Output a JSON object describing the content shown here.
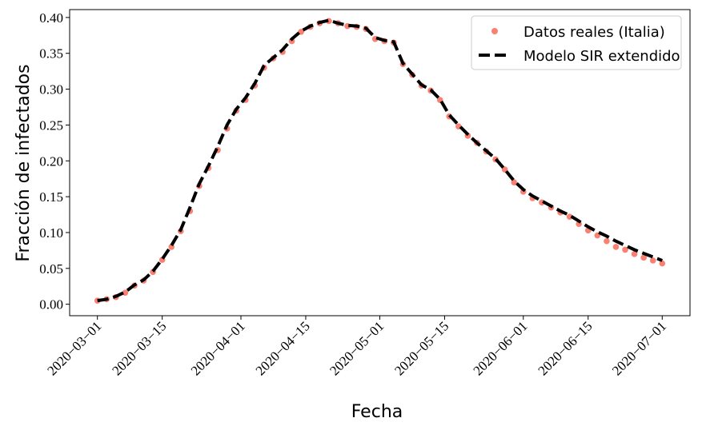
{
  "chart_data": {
    "type": "line",
    "x_label": "Fecha",
    "y_label": "Fracción de infectados",
    "x": [
      "2020-03-01",
      "2020-03-03",
      "2020-03-05",
      "2020-03-07",
      "2020-03-09",
      "2020-03-11",
      "2020-03-13",
      "2020-03-15",
      "2020-03-17",
      "2020-03-19",
      "2020-03-21",
      "2020-03-23",
      "2020-03-25",
      "2020-03-27",
      "2020-03-29",
      "2020-03-31",
      "2020-04-02",
      "2020-04-04",
      "2020-04-06",
      "2020-04-08",
      "2020-04-10",
      "2020-04-12",
      "2020-04-14",
      "2020-04-16",
      "2020-04-18",
      "2020-04-20",
      "2020-04-22",
      "2020-04-24",
      "2020-04-26",
      "2020-04-28",
      "2020-04-30",
      "2020-05-02",
      "2020-05-04",
      "2020-05-06",
      "2020-05-08",
      "2020-05-10",
      "2020-05-12",
      "2020-05-14",
      "2020-05-16",
      "2020-05-18",
      "2020-05-20",
      "2020-05-22",
      "2020-05-24",
      "2020-05-26",
      "2020-05-28",
      "2020-05-30",
      "2020-06-01",
      "2020-06-03",
      "2020-06-05",
      "2020-06-07",
      "2020-06-09",
      "2020-06-11",
      "2020-06-13",
      "2020-06-15",
      "2020-06-17",
      "2020-06-19",
      "2020-06-21",
      "2020-06-23",
      "2020-06-25",
      "2020-06-27",
      "2020-06-29",
      "2020-07-01"
    ],
    "series": [
      {
        "name": "Datos reales (Italia)",
        "color": "#fa8072",
        "style": "markers",
        "values": [
          0.005,
          0.007,
          0.01,
          0.016,
          0.026,
          0.033,
          0.045,
          0.062,
          0.08,
          0.102,
          0.13,
          0.165,
          0.19,
          0.215,
          0.245,
          0.27,
          0.285,
          0.305,
          0.33,
          0.343,
          0.352,
          0.367,
          0.38,
          0.387,
          0.392,
          0.395,
          0.392,
          0.388,
          0.387,
          0.384,
          0.37,
          0.367,
          0.365,
          0.335,
          0.32,
          0.305,
          0.298,
          0.285,
          0.262,
          0.248,
          0.235,
          0.225,
          0.213,
          0.202,
          0.188,
          0.17,
          0.157,
          0.148,
          0.142,
          0.135,
          0.128,
          0.122,
          0.112,
          0.103,
          0.096,
          0.088,
          0.08,
          0.076,
          0.07,
          0.065,
          0.061,
          0.057
        ]
      },
      {
        "name": "Modelo SIR extendido",
        "color": "#000000",
        "style": "dashed",
        "values": [
          0.005,
          0.007,
          0.011,
          0.017,
          0.027,
          0.034,
          0.046,
          0.063,
          0.082,
          0.104,
          0.135,
          0.168,
          0.193,
          0.22,
          0.25,
          0.272,
          0.288,
          0.308,
          0.333,
          0.344,
          0.355,
          0.37,
          0.381,
          0.388,
          0.393,
          0.396,
          0.392,
          0.389,
          0.388,
          0.385,
          0.372,
          0.368,
          0.366,
          0.336,
          0.321,
          0.306,
          0.299,
          0.286,
          0.264,
          0.25,
          0.237,
          0.225,
          0.214,
          0.203,
          0.188,
          0.172,
          0.16,
          0.151,
          0.144,
          0.137,
          0.13,
          0.124,
          0.116,
          0.108,
          0.101,
          0.095,
          0.088,
          0.082,
          0.076,
          0.071,
          0.066,
          0.061
        ]
      }
    ],
    "xlim": [
      "2020-02-24",
      "2020-07-07"
    ],
    "xticks": [
      {
        "value": "2020-03-01",
        "label": "2020−03−01"
      },
      {
        "value": "2020-03-15",
        "label": "2020−03−15"
      },
      {
        "value": "2020-04-01",
        "label": "2020−04−01"
      },
      {
        "value": "2020-04-15",
        "label": "2020−04−15"
      },
      {
        "value": "2020-05-01",
        "label": "2020−05−01"
      },
      {
        "value": "2020-05-15",
        "label": "2020−05−15"
      },
      {
        "value": "2020-06-01",
        "label": "2020−06−01"
      },
      {
        "value": "2020-06-15",
        "label": "2020−06−15"
      },
      {
        "value": "2020-07-01",
        "label": "2020−07−01"
      }
    ],
    "ylim": [
      -0.016,
      0.411
    ],
    "yticks": [
      {
        "value": 0,
        "label": "0.00"
      },
      {
        "value": 0.05,
        "label": "0.05"
      },
      {
        "value": 0.1,
        "label": "0.10"
      },
      {
        "value": 0.15,
        "label": "0.15"
      },
      {
        "value": 0.2,
        "label": "0.20"
      },
      {
        "value": 0.25,
        "label": "0.25"
      },
      {
        "value": 0.3,
        "label": "0.30"
      },
      {
        "value": 0.35,
        "label": "0.35"
      },
      {
        "value": 0.4,
        "label": "0.40"
      }
    ],
    "legend": "upper right",
    "grid": false
  }
}
